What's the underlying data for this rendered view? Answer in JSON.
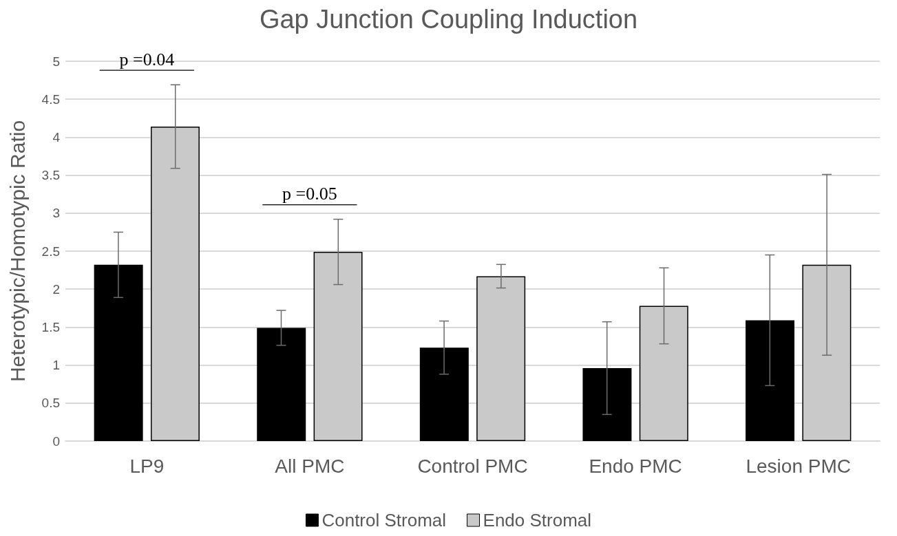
{
  "chart_data": {
    "type": "bar",
    "title": "Gap Junction Coupling Induction",
    "ylabel": "Heterotypic/Homotypic Ratio",
    "categories": [
      "LP9",
      "All PMC",
      "Control PMC",
      "Endo PMC",
      "Lesion PMC"
    ],
    "series": [
      {
        "name": "Control Stromal",
        "color": "#000000",
        "values": [
          2.32,
          1.49,
          1.23,
          0.96,
          1.59
        ],
        "errors": [
          0.43,
          0.23,
          0.35,
          0.61,
          0.86
        ]
      },
      {
        "name": "Endo Stromal",
        "color": "#c9c9c9",
        "values": [
          4.14,
          2.49,
          2.17,
          1.78,
          2.32
        ],
        "errors": [
          0.55,
          0.43,
          0.155,
          0.5,
          1.19
        ]
      }
    ],
    "ylim": [
      0,
      5
    ],
    "yticks": [
      0,
      0.5,
      1,
      1.5,
      2,
      2.5,
      3,
      3.5,
      4,
      4.5,
      5
    ],
    "grid": "y",
    "legend": "bottom",
    "annotations": [
      "p =0.04",
      "p =0.05"
    ]
  }
}
